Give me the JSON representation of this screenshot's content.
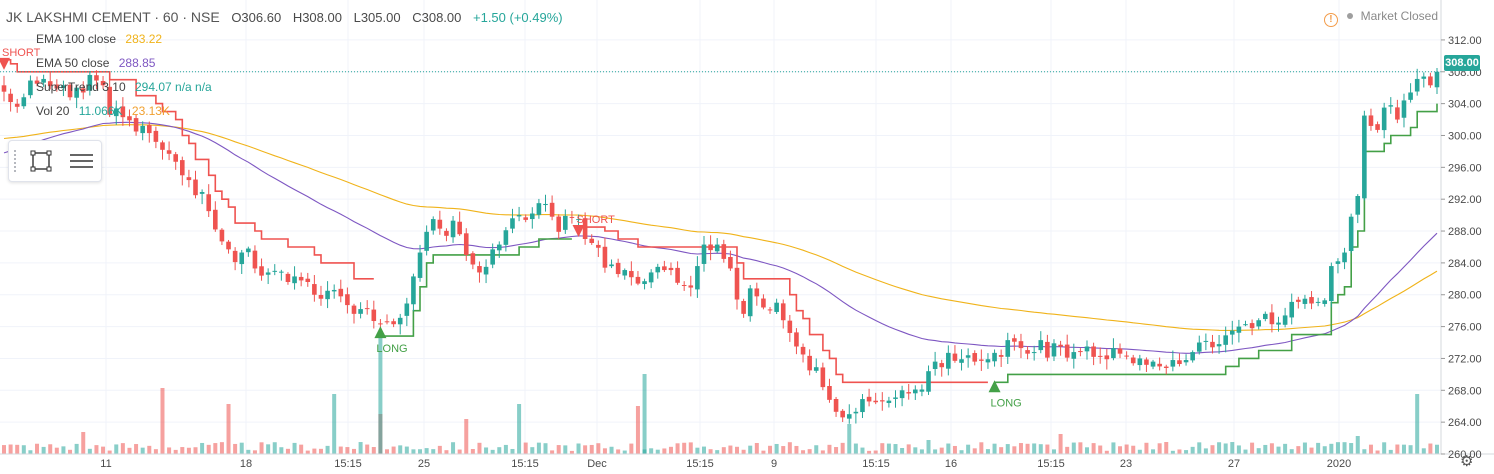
{
  "header": {
    "symbol": "JK LAKSHMI CEMENT · 60 · NSE",
    "open": "O306.60",
    "high": "H308.00",
    "low": "L305.00",
    "close": "C308.00",
    "change": "+1.50 (+0.49%)"
  },
  "status": {
    "warning_glyph": "!",
    "market": "Market Closed"
  },
  "legend": [
    {
      "label": "EMA 100 close",
      "values": [
        "283.22"
      ],
      "colors": [
        "#f0b31a"
      ]
    },
    {
      "label": "EMA 50 close",
      "values": [
        "288.85"
      ],
      "colors": [
        "#7e57c2"
      ]
    },
    {
      "label": "SuperTrend 3 10",
      "values": [
        "294.07",
        "n/a",
        "n/a"
      ],
      "colors": [
        "#26a69a",
        "#26a69a",
        "#26a69a"
      ]
    },
    {
      "label": "Vol 20",
      "values": [
        "11.066K",
        "23.13K"
      ],
      "colors": [
        "#26a69a",
        "#f0a030"
      ]
    }
  ],
  "last_price_label": "308.00",
  "signal_labels": [
    "SHORT",
    "LONG",
    "SHORT",
    "LONG"
  ],
  "colors": {
    "up": "#26a69a",
    "down": "#ef5350",
    "ema100": "#f0b31a",
    "ema50": "#7e57c2",
    "supertrend_up": "#43a047",
    "supertrend_down": "#ef5350"
  },
  "chart_data": {
    "type": "candlestick",
    "title": "JK LAKSHMI CEMENT · 60 · NSE",
    "ylim": [
      260,
      314
    ],
    "y_ticks": [
      "312.00",
      "308.00",
      "304.00",
      "300.00",
      "296.00",
      "292.00",
      "288.00",
      "284.00",
      "280.00",
      "276.00",
      "272.00",
      "268.00",
      "264.00",
      "260.00"
    ],
    "x_ticks": [
      "11",
      "18",
      "15:15",
      "25",
      "15:15",
      "Dec",
      "15:15",
      "9",
      "15:15",
      "16",
      "15:15",
      "23",
      "27",
      "2020"
    ],
    "close": [
      305.5,
      304.2,
      303.6,
      304.8,
      306.9,
      306.5,
      307.1,
      306.2,
      305.9,
      306.3,
      304.8,
      306.0,
      305.4,
      307.6,
      306.9,
      306.3,
      302.6,
      303.4,
      302.3,
      301.9,
      300.5,
      301.2,
      300.3,
      299.2,
      298.2,
      297.7,
      296.7,
      295.0,
      294.4,
      292.5,
      292.9,
      290.5,
      288.2,
      286.7,
      285.7,
      284.1,
      285.3,
      285.8,
      283.3,
      282.4,
      282.8,
      283.0,
      282.9,
      281.6,
      282.3,
      281.8,
      281.6,
      280.0,
      279.5,
      280.5,
      280.6,
      279.8,
      278.7,
      277.6,
      278.2,
      278.2,
      276.7,
      276.4,
      276.6,
      276.3,
      277.1,
      278.9,
      282.3,
      285.3,
      287.9,
      289.5,
      288.3,
      287.4,
      289.3,
      287.6,
      285.0,
      283.8,
      282.8,
      283.5,
      285.7,
      286.3,
      288.1,
      289.6,
      290.0,
      289.4,
      290.2,
      291.5,
      291.4,
      289.8,
      287.9,
      289.9,
      289.7,
      289.5,
      287.0,
      286.5,
      285.9,
      283.4,
      283.8,
      282.6,
      283.1,
      282.2,
      281.4,
      281.7,
      282.8,
      283.5,
      283.1,
      283.1,
      281.5,
      281.1,
      280.9,
      283.6,
      286.3,
      285.6,
      286.3,
      284.5,
      283.3,
      279.4,
      277.6,
      280.8,
      279.8,
      278.4,
      278.1,
      279.0,
      276.8,
      275.2,
      273.5,
      272.5,
      270.5,
      270.9,
      268.4,
      266.8,
      265.3,
      264.6,
      265.0,
      265.3,
      266.9,
      266.6,
      266.5,
      266.6,
      266.7,
      267.1,
      268.0,
      267.6,
      268.1,
      268.1,
      270.4,
      271.6,
      270.9,
      272.7,
      271.7,
      271.9,
      272.4,
      271.6,
      271.7,
      271.9,
      272.7,
      272.2,
      274.3,
      274.1,
      273.3,
      272.6,
      272.8,
      274.3,
      272.1,
      273.9,
      273.5,
      272.1,
      272.8,
      272.8,
      273.5,
      272.2,
      272.3,
      271.9,
      273.3,
      272.6,
      272.3,
      271.4,
      272.0,
      271.2,
      271.6,
      271.0,
      270.8,
      271.8,
      271.3,
      271.8,
      272.8,
      274.0,
      274.2,
      273.4,
      273.8,
      274.9,
      275.5,
      276.0,
      276.3,
      275.8,
      276.8,
      277.6,
      276.3,
      276.5,
      277.4,
      279.1,
      279.1,
      279.5,
      278.9,
      279.1,
      279.3,
      283.6,
      284.2,
      285.3,
      289.8,
      292.4,
      302.5,
      301.2,
      300.7,
      303.5,
      303.8,
      302.0,
      304.4,
      305.4,
      307.1,
      307.4,
      306.3,
      308.0
    ],
    "supertrend": [
      {
        "value": 309.5,
        "direction": "down",
        "signal": "SHORT"
      },
      {
        "value": 274.8,
        "direction": "up",
        "signal": "LONG"
      },
      {
        "value": 288.5,
        "direction": "down",
        "signal": "SHORT"
      },
      {
        "value": 268.0,
        "direction": "up",
        "signal": "LONG"
      }
    ],
    "ema100_last": 283.22,
    "ema50_last": 288.85,
    "volume_last": "11.066K",
    "volume_ma20_last": "23.13K"
  }
}
